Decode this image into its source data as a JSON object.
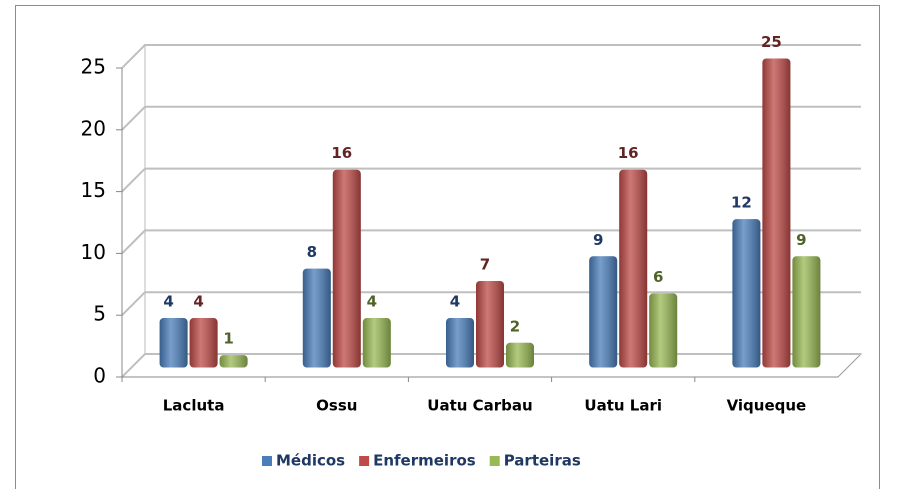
{
  "chart_data": {
    "type": "bar",
    "categories": [
      "Lacluta",
      "Ossu",
      "Uatu Carbau",
      "Uatu Lari",
      "Viqueque"
    ],
    "series": [
      {
        "name": "Médicos",
        "color": "#4a7ebb",
        "label_color": "#1f3864",
        "values": [
          4,
          8,
          4,
          9,
          12
        ]
      },
      {
        "name": "Enfermeiros",
        "color": "#be4b48",
        "label_color": "#632523",
        "values": [
          4,
          16,
          7,
          16,
          25
        ]
      },
      {
        "name": "Parteiras",
        "color": "#98b954",
        "label_color": "#4f6228",
        "values": [
          1,
          4,
          2,
          6,
          9
        ]
      }
    ],
    "ylim": [
      0,
      25
    ],
    "yticks": [
      0,
      5,
      10,
      15,
      20,
      25
    ],
    "grid": true,
    "legend": "bottom"
  }
}
